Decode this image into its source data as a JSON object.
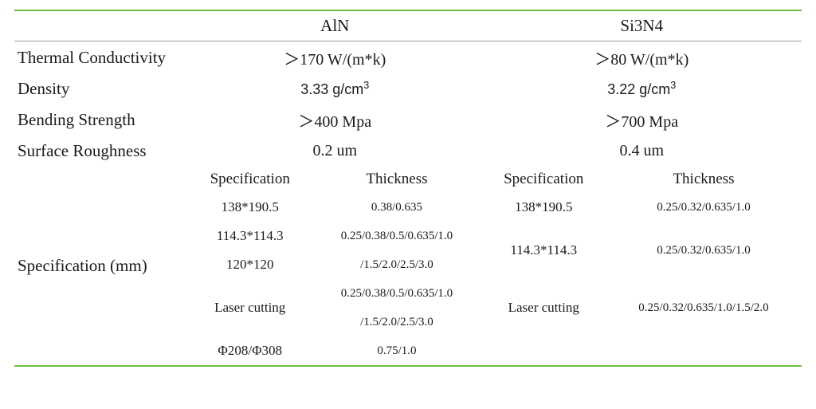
{
  "colors": {
    "accent": "#6fbf44",
    "rule": "#9e9e9e",
    "text": "#1a1a1a",
    "background": "#ffffff"
  },
  "headers": {
    "col1": "AlN",
    "col2": "Si3N4"
  },
  "rows": {
    "thermal": {
      "label": "Thermal Conductivity",
      "aln": "＞170 W/(m*k)",
      "si3n4": "＞80 W/(m*k)"
    },
    "density": {
      "label": "Density",
      "aln": "3.33 g/cm",
      "si3n4": "3.22 g/cm",
      "super": "3"
    },
    "bending": {
      "label": "Bending Strength",
      "aln": "＞400 Mpa",
      "si3n4": "＞700 Mpa"
    },
    "roughness": {
      "label": "Surface Roughness",
      "aln": "0.2 um",
      "si3n4": "0.4 um"
    }
  },
  "specBlock": {
    "label": "Specification (mm)",
    "sub": {
      "spec": "Specification",
      "thick": "Thickness"
    },
    "aln": [
      {
        "spec": "138*190.5",
        "thick": "0.38/0.635"
      },
      {
        "spec": "114.3*114.3",
        "thick": "0.25/0.38/0.5/0.635/1.0"
      },
      {
        "spec": "120*120",
        "thick": "/1.5/2.0/2.5/3.0"
      },
      {
        "spec": "Laser cutting",
        "thick1": "0.25/0.38/0.5/0.635/1.0",
        "thick2": "/1.5/2.0/2.5/3.0"
      },
      {
        "spec": "Φ208/Φ308",
        "thick": "0.75/1.0"
      }
    ],
    "si3n4": [
      {
        "spec": "138*190.5",
        "thick": "0.25/0.32/0.635/1.0"
      },
      {
        "spec": "114.3*114.3",
        "thick": "0.25/0.32/0.635/1.0"
      },
      {
        "spec": "Laser cutting",
        "thick": "0.25/0.32/0.635/1.0/1.5/2.0"
      }
    ]
  }
}
